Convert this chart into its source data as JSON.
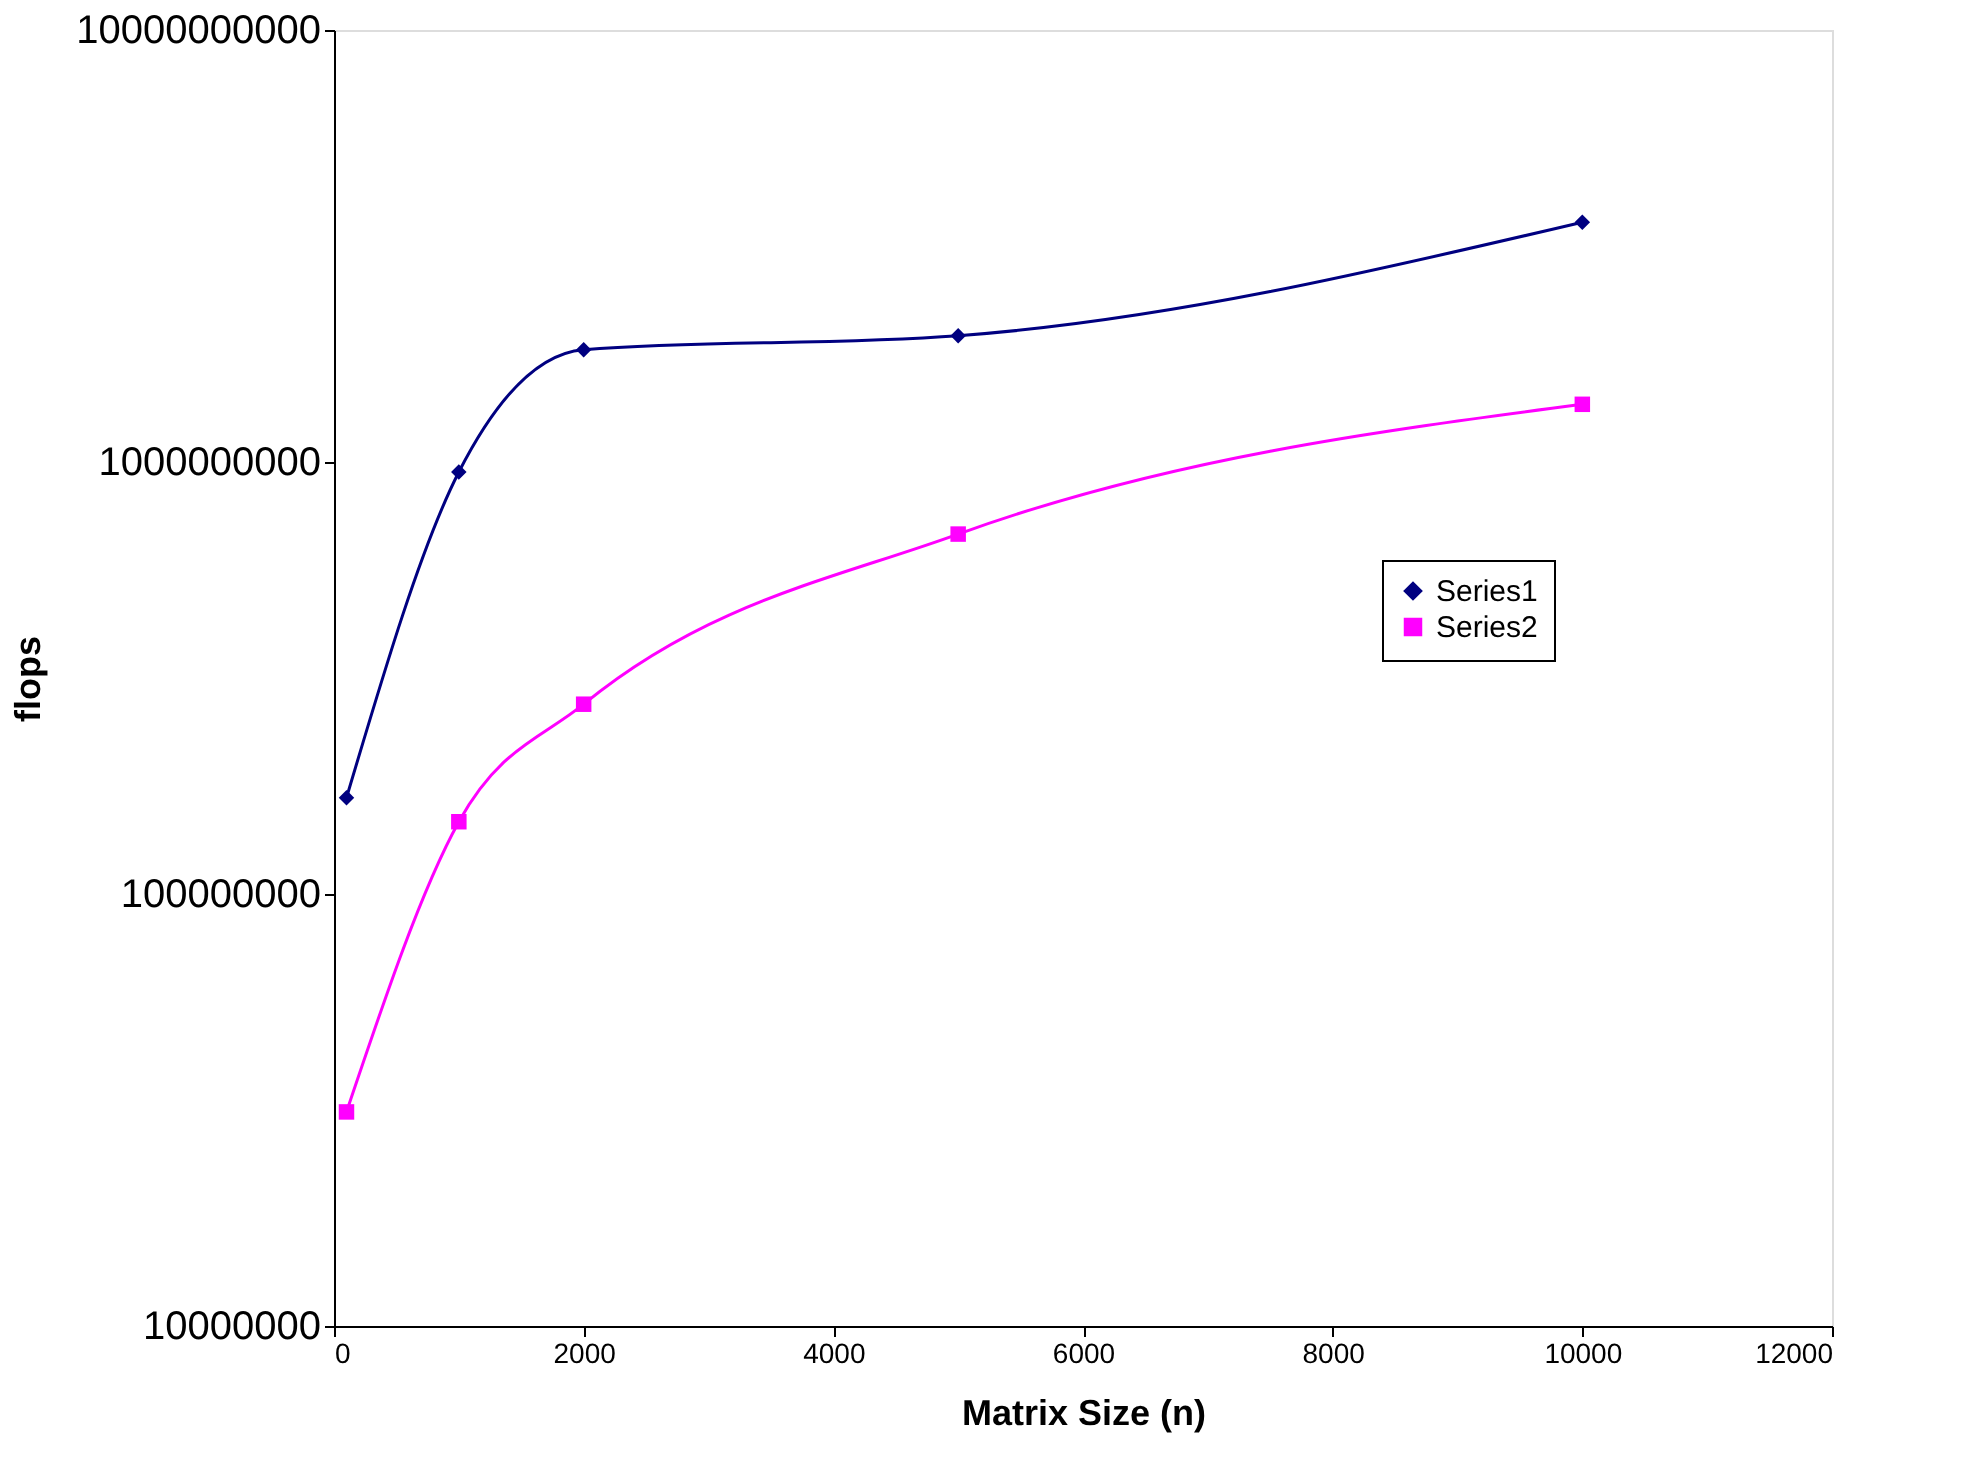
{
  "chart_data": {
    "type": "line",
    "xlabel": "Matrix Size (n)",
    "ylabel": "flops",
    "x": [
      100,
      1000,
      2000,
      5000,
      10000
    ],
    "series": [
      {
        "name": "Series1",
        "color": "#000080",
        "marker": "diamond",
        "values": [
          167000000,
          948000000,
          1820000000,
          1960000000,
          3590000000
        ]
      },
      {
        "name": "Series2",
        "color": "#ff00ff",
        "marker": "square",
        "values": [
          31300000,
          147000000,
          275000000,
          681000000,
          1360000000
        ]
      }
    ],
    "log": "y",
    "xlim": [
      0,
      12000
    ],
    "xticks": [
      0,
      2000,
      4000,
      6000,
      8000,
      10000,
      12000
    ],
    "ylim": [
      10000000,
      10000000000
    ],
    "yticks": [
      10000000,
      100000000,
      1000000000,
      10000000000
    ],
    "grid": false,
    "legend": "right",
    "line_style": "solid"
  }
}
